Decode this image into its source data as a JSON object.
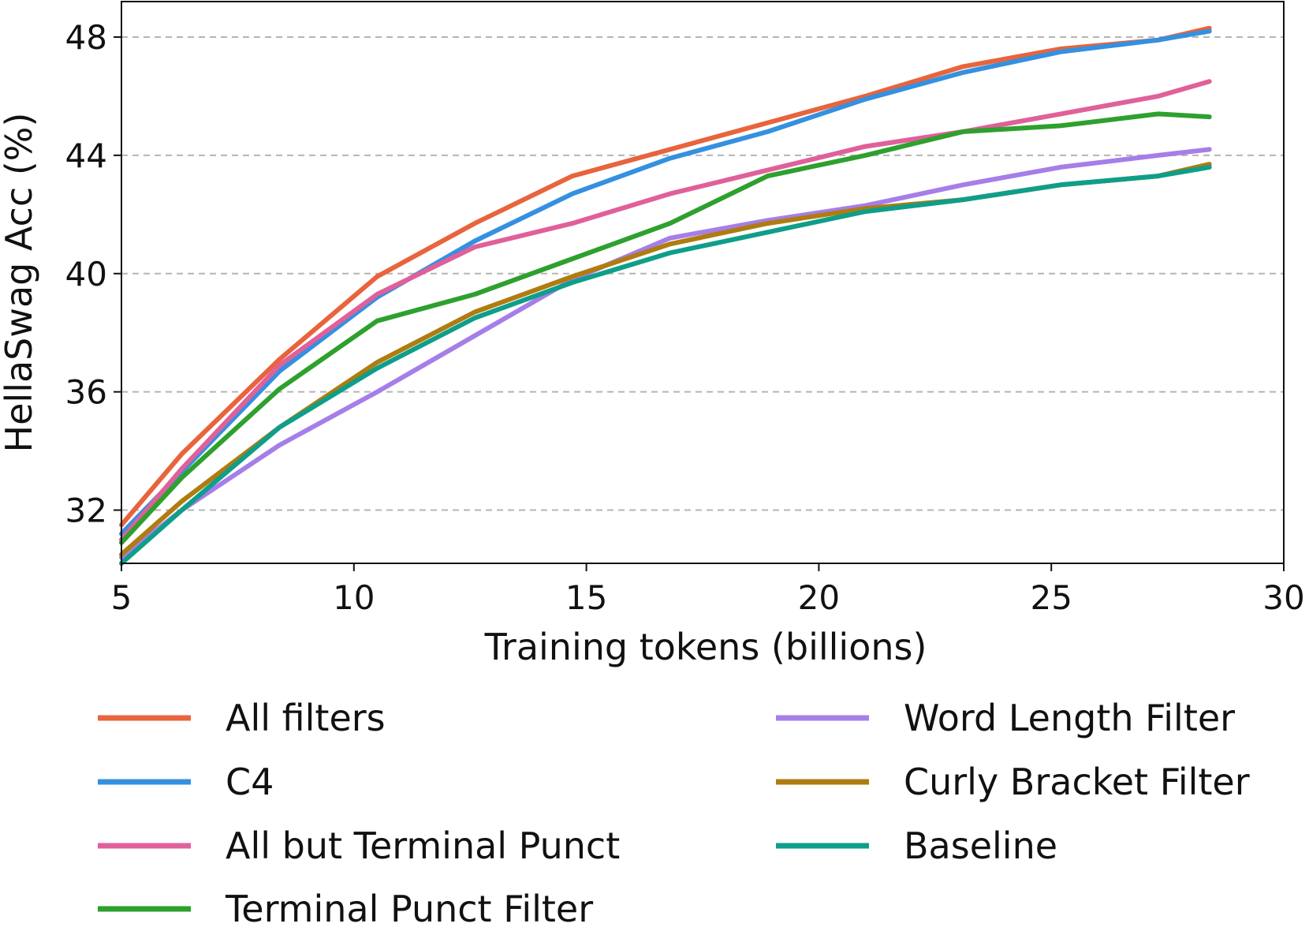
{
  "chart_data": {
    "type": "line",
    "xlabel": "Training tokens (billions)",
    "ylabel": "HellaSwag Acc (%)",
    "xlim": [
      5,
      30
    ],
    "ylim": [
      30.2,
      49.2
    ],
    "xticks": [
      5,
      10,
      15,
      20,
      25,
      30
    ],
    "yticks": [
      32,
      36,
      40,
      44,
      48
    ],
    "grid": "horizontal dashed",
    "legend_placement": "below plot, two columns",
    "x": [
      5.0,
      6.3,
      8.4,
      10.5,
      12.6,
      14.7,
      16.8,
      18.9,
      21.0,
      23.1,
      25.2,
      27.3,
      28.4
    ],
    "series": [
      {
        "name": "All filters",
        "color": "#E8643C",
        "values": [
          31.5,
          33.9,
          37.1,
          39.9,
          41.7,
          43.3,
          44.2,
          45.1,
          46.0,
          47.0,
          47.6,
          47.9,
          48.3
        ]
      },
      {
        "name": "C4",
        "color": "#3590E0",
        "values": [
          31.2,
          33.3,
          36.7,
          39.2,
          41.1,
          42.7,
          43.9,
          44.8,
          45.9,
          46.8,
          47.5,
          47.9,
          48.2
        ]
      },
      {
        "name": "All but Terminal Punct",
        "color": "#E0609A",
        "values": [
          31.0,
          33.4,
          36.9,
          39.3,
          40.9,
          41.7,
          42.7,
          43.5,
          44.3,
          44.8,
          45.4,
          46.0,
          46.5
        ]
      },
      {
        "name": "Terminal Punct Filter",
        "color": "#2EA02E",
        "values": [
          30.9,
          33.1,
          36.1,
          38.4,
          39.3,
          40.5,
          41.7,
          43.3,
          44.0,
          44.8,
          45.0,
          45.4,
          45.3
        ]
      },
      {
        "name": "Word Length Filter",
        "color": "#A67EE8",
        "values": [
          30.4,
          32.0,
          34.2,
          36.0,
          37.9,
          39.8,
          41.2,
          41.8,
          42.3,
          43.0,
          43.6,
          44.0,
          44.2
        ]
      },
      {
        "name": "Curly Bracket Filter",
        "color": "#AF7C10",
        "values": [
          30.5,
          32.3,
          34.8,
          37.0,
          38.7,
          39.9,
          41.0,
          41.7,
          42.2,
          42.5,
          43.0,
          43.3,
          43.7
        ]
      },
      {
        "name": "Baseline",
        "color": "#0E9E8A",
        "values": [
          30.2,
          32.0,
          34.8,
          36.8,
          38.5,
          39.7,
          40.7,
          41.4,
          42.1,
          42.5,
          43.0,
          43.3,
          43.6
        ]
      }
    ]
  }
}
